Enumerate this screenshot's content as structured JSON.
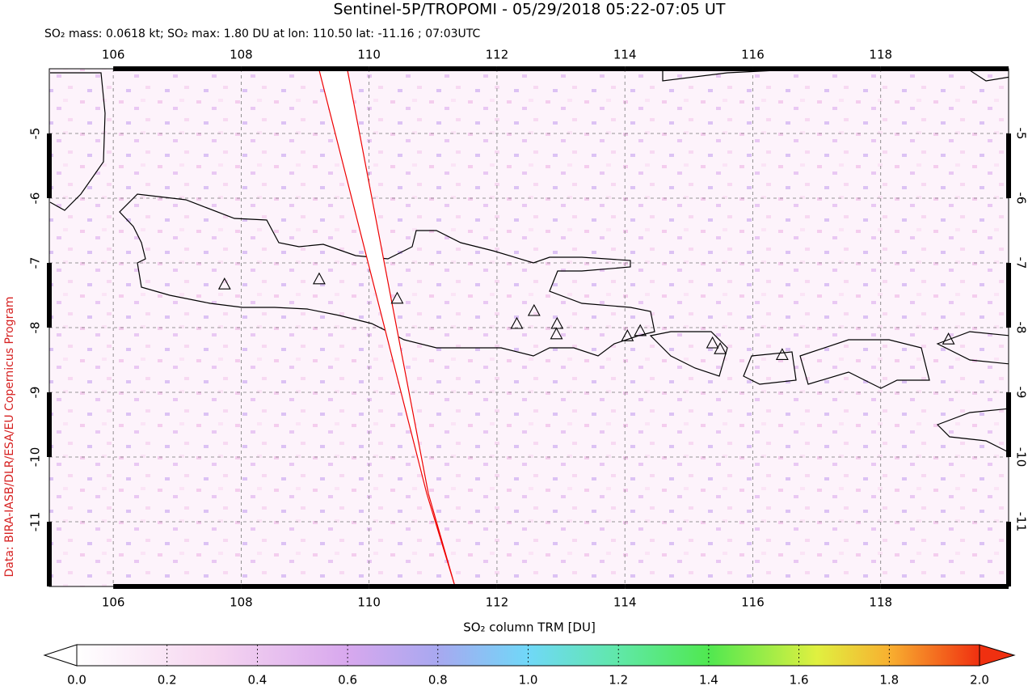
{
  "chart_data": {
    "type": "map",
    "title": "Sentinel-5P/TROPOMI - 05/29/2018 05:22-07:05 UT",
    "subtitle": "SO₂ mass: 0.0618 kt; SO₂ max: 1.80 DU at lon: 110.50 lat: -11.16 ; 07:03UTC",
    "credit": "Data: BIRA-IASB/DLR/ESA/EU Copernicus Program",
    "xlim": [
      105,
      120
    ],
    "ylim": [
      -12,
      -4
    ],
    "xticks": [
      106,
      108,
      110,
      112,
      114,
      116,
      118
    ],
    "yticks": [
      -5,
      -6,
      -7,
      -8,
      -9,
      -10,
      -11
    ],
    "grid": true,
    "markers": {
      "lon": [
        107.74,
        109.22,
        110.44,
        112.31,
        112.58,
        112.94,
        112.93,
        114.04,
        114.24,
        115.37,
        115.49,
        116.46,
        119.06
      ],
      "lat": [
        -7.34,
        -7.26,
        -7.56,
        -7.95,
        -7.75,
        -7.95,
        -8.11,
        -8.14,
        -8.06,
        -8.25,
        -8.34,
        -8.43,
        -8.19
      ]
    },
    "colorbar": {
      "label": "SO₂ column TRM [DU]",
      "lim": [
        0,
        2
      ],
      "ticks": [
        {
          "value": 0,
          "label": "0.0"
        },
        {
          "value": 0.2,
          "label": "0.2"
        },
        {
          "value": 0.4,
          "label": "0.4"
        },
        {
          "value": 0.6,
          "label": "0.6"
        },
        {
          "value": 0.8,
          "label": "0.8"
        },
        {
          "value": 1,
          "label": "1.0"
        },
        {
          "value": 1.2,
          "label": "1.2"
        },
        {
          "value": 1.4,
          "label": "1.4"
        },
        {
          "value": 1.6,
          "label": "1.6"
        },
        {
          "value": 1.8,
          "label": "1.8"
        },
        {
          "value": 2,
          "label": "2.0"
        }
      ]
    }
  }
}
